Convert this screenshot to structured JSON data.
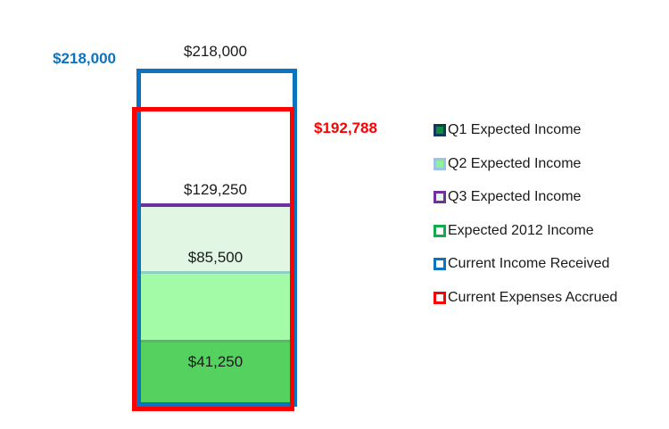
{
  "chart_data": {
    "type": "bar",
    "subtype": "overlapping-single-column",
    "title": "",
    "unit": "USD",
    "axis_max": 218000,
    "grid": false,
    "legend_position": "right",
    "series": [
      {
        "name": "Q1 Expected Income",
        "value": 41250,
        "label": "$41,250",
        "fill": "#55d15f",
        "border": "#5fb36e"
      },
      {
        "name": "Q2 Expected Income",
        "value": 85500,
        "label": "$85,500",
        "fill": "#a3fba7",
        "border": "#8fcfc4"
      },
      {
        "name": "Q3 Expected Income",
        "value": 129250,
        "label": "$129,250",
        "fill": "#e1f6e3",
        "border": "#7030a0"
      },
      {
        "name": "Expected 2012 Income",
        "value": 218000,
        "label": "$218,000",
        "fill": "#ffffff",
        "border": "#12ad4b"
      },
      {
        "name": "Current Income Received",
        "value": 218000,
        "label": "$218,000",
        "fill": "#ffffff",
        "border": "#0b74c0"
      },
      {
        "name": "Current Expenses Accrued",
        "value": 192788,
        "label": "$192,788",
        "fill": "#ffffff",
        "border": "#ff0000"
      }
    ]
  },
  "bar": {
    "income_received_outline_color": "#0b74c0",
    "expenses_accrued_outline_color": "#ff0000",
    "q1_fill": "#55d15f",
    "q1_top_border": "#5fb36e",
    "q2_fill": "#a3fba7",
    "q2_top_border": "#8fcfc4",
    "q3_fill": "#e1f6e3",
    "q3_top_border": "#7030a0"
  },
  "labels": {
    "expected_total_black": "$218,000",
    "income_received_blue": "$218,000",
    "expenses_accrued_red": "$192,788",
    "q3_value": "$129,250",
    "q2_value": "$85,500",
    "q1_value": "$41,250",
    "blue_label_color": "#0b74c0",
    "red_label_color": "#ff0000",
    "black_label_color": "#1a1a1a"
  },
  "legend": {
    "items": [
      {
        "label": "Q1 Expected Income",
        "fill": "#0b8d3d",
        "border": "#17365d"
      },
      {
        "label": "Q2 Expected Income",
        "fill": "#8bf29b",
        "border": "#9dc3e6"
      },
      {
        "label": "Q3 Expected Income",
        "fill": "#e9f8ec",
        "border": "#7030a0"
      },
      {
        "label": "Expected 2012 Income",
        "fill": "#ffffff",
        "border": "#12ad4b"
      },
      {
        "label": "Current Income Received",
        "fill": "#ffffff",
        "border": "#0b74c0"
      },
      {
        "label": "Current Expenses Accrued",
        "fill": "#ffffff",
        "border": "#ff0000"
      }
    ]
  }
}
